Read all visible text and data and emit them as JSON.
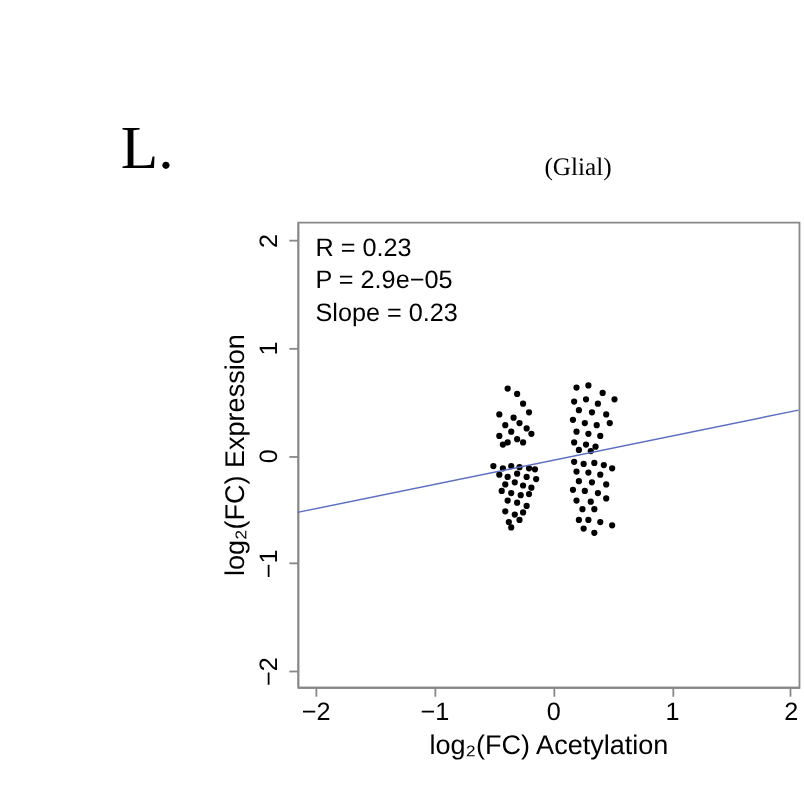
{
  "chart_data": {
    "type": "scatter",
    "xlabel": "log₂(FC) Acetylation",
    "ylabel": "log₂(FC) Expression",
    "annotations": [
      "L.",
      "(Glial)",
      "R = 0.23",
      "P = 2.9e−05",
      "Slope = 0.23"
    ],
    "xlim": [
      -2.15,
      2.07
    ],
    "ylim": [
      -2.15,
      2.17
    ],
    "xticks": [
      -2,
      -1,
      0,
      1,
      2
    ],
    "yticks": [
      -2,
      -1,
      0,
      1,
      2
    ],
    "grid": false,
    "legend": false,
    "series": [
      {
        "type": "scatter",
        "color": "#000000",
        "marker": "circle",
        "x": [
          -0.38,
          -0.3,
          -0.25,
          -0.45,
          -0.33,
          -0.2,
          -0.4,
          -0.28,
          -0.35,
          -0.22,
          -0.45,
          -0.3,
          -0.18,
          -0.38,
          -0.25,
          -0.42,
          -0.5,
          -0.42,
          -0.35,
          -0.28,
          -0.2,
          -0.15,
          -0.45,
          -0.38,
          -0.3,
          -0.22,
          -0.14,
          -0.4,
          -0.32,
          -0.25,
          -0.18,
          -0.43,
          -0.35,
          -0.27,
          -0.2,
          -0.38,
          -0.3,
          -0.22,
          -0.4,
          -0.32,
          -0.25,
          -0.37,
          -0.28,
          -0.35,
          0.2,
          0.3,
          0.42,
          0.52,
          0.18,
          0.28,
          0.38,
          0.22,
          0.33,
          0.45,
          0.17,
          0.27,
          0.37,
          0.48,
          0.2,
          0.3,
          0.4,
          0.18,
          0.28,
          0.36,
          0.22,
          0.32,
          0.18,
          0.26,
          0.35,
          0.43,
          0.5,
          0.2,
          0.3,
          0.4,
          0.22,
          0.33,
          0.45,
          0.17,
          0.27,
          0.38,
          0.2,
          0.32,
          0.45,
          0.25,
          0.35,
          0.22,
          0.3,
          0.4,
          0.26,
          0.5,
          0.35
        ],
        "values": [
          0.62,
          0.57,
          0.48,
          0.38,
          0.35,
          0.4,
          0.28,
          0.3,
          0.22,
          0.25,
          0.18,
          0.15,
          0.2,
          0.12,
          0.12,
          0.1,
          -0.1,
          -0.12,
          -0.1,
          -0.11,
          -0.12,
          -0.13,
          -0.18,
          -0.2,
          -0.17,
          -0.2,
          -0.22,
          -0.27,
          -0.25,
          -0.28,
          -0.3,
          -0.33,
          -0.35,
          -0.37,
          -0.36,
          -0.42,
          -0.44,
          -0.47,
          -0.52,
          -0.55,
          -0.53,
          -0.62,
          -0.6,
          -0.67,
          0.63,
          0.65,
          0.58,
          0.52,
          0.5,
          0.52,
          0.48,
          0.42,
          0.4,
          0.38,
          0.33,
          0.3,
          0.28,
          0.3,
          0.22,
          0.2,
          0.18,
          0.12,
          0.1,
          0.08,
          0.05,
          0.04,
          -0.06,
          -0.08,
          -0.07,
          -0.09,
          -0.12,
          -0.15,
          -0.16,
          -0.18,
          -0.24,
          -0.25,
          -0.27,
          -0.32,
          -0.33,
          -0.35,
          -0.42,
          -0.43,
          -0.4,
          -0.5,
          -0.5,
          -0.6,
          -0.6,
          -0.62,
          -0.68,
          -0.65,
          -0.72
        ]
      },
      {
        "type": "line",
        "color": "#5b6fc0",
        "x": [
          -2.15,
          2.07
        ],
        "values": [
          -0.53,
          0.42
        ]
      }
    ]
  }
}
